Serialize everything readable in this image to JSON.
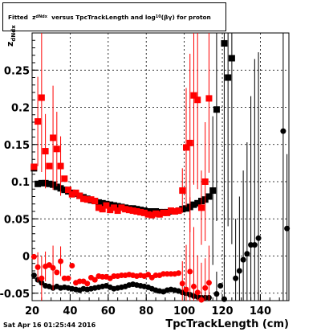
{
  "title_prefix": "Fitted",
  "title_z": "z",
  "title_z_sub": "dNdx",
  "title_mid": "versus TpcTrackLength and log",
  "title_log_sub": "10",
  "title_tail": "(βγ) for proton",
  "ylabel_main": "z",
  "ylabel_sub": "dNdx",
  "xlabel": "TpcTrackLength (cm)",
  "timestamp": "Sat Apr 16 01:25:44 2016",
  "colors": {
    "series_black": "#000000",
    "series_red": "#ff0000",
    "grid": "#000000"
  },
  "chart_data": {
    "type": "scatter",
    "xlim": [
      20,
      155
    ],
    "ylim": [
      -0.06,
      0.3
    ],
    "grid": true,
    "xticks": [
      20,
      40,
      60,
      80,
      100,
      120,
      140
    ],
    "xtick_labels": [
      "20",
      "40",
      "60",
      "80",
      "100",
      "120",
      "140"
    ],
    "yticks": [
      -0.05,
      0,
      0.05,
      0.1,
      0.15,
      0.2,
      0.25
    ],
    "ytick_labels": [
      "-0.05",
      "0",
      "0.05",
      "0.1",
      "0.15",
      "0.2",
      "0.25"
    ],
    "series": [
      {
        "marker": "square",
        "color": "#000000",
        "points": [
          [
            21,
            0.118
          ],
          [
            23,
            0.097
          ],
          [
            25,
            0.098
          ],
          [
            27,
            0.098
          ],
          [
            29,
            0.097
          ],
          [
            31,
            0.096
          ],
          [
            33,
            0.093
          ],
          [
            35,
            0.091
          ],
          [
            37,
            0.089
          ],
          [
            39,
            0.087
          ],
          [
            41,
            0.085
          ],
          [
            43,
            0.084
          ],
          [
            45,
            0.081
          ],
          [
            47,
            0.079
          ],
          [
            49,
            0.077
          ],
          [
            51,
            0.075
          ],
          [
            53,
            0.074
          ],
          [
            55,
            0.072
          ],
          [
            57,
            0.071
          ],
          [
            59,
            0.07
          ],
          [
            61,
            0.069
          ],
          [
            63,
            0.068
          ],
          [
            65,
            0.067
          ],
          [
            67,
            0.066
          ],
          [
            69,
            0.065
          ],
          [
            71,
            0.064
          ],
          [
            73,
            0.064
          ],
          [
            75,
            0.063
          ],
          [
            77,
            0.062
          ],
          [
            79,
            0.061
          ],
          [
            81,
            0.06
          ],
          [
            83,
            0.06
          ],
          [
            85,
            0.06
          ],
          [
            87,
            0.059
          ],
          [
            89,
            0.059
          ],
          [
            91,
            0.059
          ],
          [
            93,
            0.06
          ],
          [
            95,
            0.06
          ],
          [
            97,
            0.061
          ],
          [
            99,
            0.063
          ],
          [
            101,
            0.064
          ],
          [
            103,
            0.066
          ],
          [
            105,
            0.069
          ],
          [
            107,
            0.071
          ],
          [
            109,
            0.074
          ],
          [
            111,
            0.076
          ],
          [
            113,
            0.08
          ],
          [
            115,
            0.088
          ],
          [
            117,
            0.197
          ],
          [
            121,
            0.286
          ],
          [
            123,
            0.24
          ],
          [
            125,
            0.266
          ]
        ],
        "errors": [
          [
            115,
            0.1
          ],
          [
            117,
            0.15
          ],
          [
            121,
            0.3
          ],
          [
            123,
            0.2
          ],
          [
            125,
            0.25
          ]
        ]
      },
      {
        "marker": "square",
        "color": "#ff0000",
        "points": [
          [
            21,
            0.12
          ],
          [
            23,
            0.181
          ],
          [
            25,
            0.213
          ],
          [
            27,
            0.141
          ],
          [
            29,
            0.121
          ],
          [
            31,
            0.159
          ],
          [
            33,
            0.144
          ],
          [
            35,
            0.121
          ],
          [
            37,
            0.104
          ],
          [
            39,
            0.089
          ],
          [
            41,
            0.083
          ],
          [
            43,
            0.085
          ],
          [
            45,
            0.081
          ],
          [
            47,
            0.077
          ],
          [
            49,
            0.076
          ],
          [
            51,
            0.076
          ],
          [
            53,
            0.074
          ],
          [
            55,
            0.065
          ],
          [
            57,
            0.063
          ],
          [
            59,
            0.068
          ],
          [
            61,
            0.062
          ],
          [
            63,
            0.065
          ],
          [
            65,
            0.061
          ],
          [
            67,
            0.065
          ],
          [
            69,
            0.063
          ],
          [
            71,
            0.062
          ],
          [
            73,
            0.061
          ],
          [
            75,
            0.06
          ],
          [
            77,
            0.059
          ],
          [
            79,
            0.058
          ],
          [
            81,
            0.056
          ],
          [
            83,
            0.055
          ],
          [
            85,
            0.057
          ],
          [
            87,
            0.056
          ],
          [
            89,
            0.058
          ],
          [
            91,
            0.058
          ],
          [
            93,
            0.061
          ],
          [
            95,
            0.06
          ],
          [
            97,
            0.061
          ],
          [
            99,
            0.088
          ],
          [
            101,
            0.146
          ],
          [
            103,
            0.152
          ],
          [
            105,
            0.216
          ],
          [
            107,
            0.21
          ],
          [
            109,
            0.065
          ],
          [
            111,
            0.1
          ],
          [
            113,
            0.212
          ]
        ],
        "errors": [
          [
            23,
            0.06
          ],
          [
            25,
            0.1
          ],
          [
            27,
            0.05
          ],
          [
            31,
            0.07
          ],
          [
            33,
            0.05
          ],
          [
            35,
            0.04
          ],
          [
            99,
            0.03
          ],
          [
            101,
            0.08
          ],
          [
            103,
            0.12
          ],
          [
            105,
            0.12
          ],
          [
            107,
            0.12
          ],
          [
            109,
            0.05
          ],
          [
            111,
            0.08
          ],
          [
            113,
            0.1
          ]
        ]
      },
      {
        "marker": "circle",
        "color": "#000000",
        "points": [
          [
            21,
            -0.026
          ],
          [
            23,
            -0.032
          ],
          [
            25,
            -0.036
          ],
          [
            27,
            -0.04
          ],
          [
            29,
            -0.041
          ],
          [
            31,
            -0.043
          ],
          [
            33,
            -0.041
          ],
          [
            35,
            -0.043
          ],
          [
            37,
            -0.042
          ],
          [
            39,
            -0.043
          ],
          [
            41,
            -0.044
          ],
          [
            43,
            -0.045
          ],
          [
            45,
            -0.046
          ],
          [
            47,
            -0.044
          ],
          [
            49,
            -0.045
          ],
          [
            51,
            -0.044
          ],
          [
            53,
            -0.043
          ],
          [
            55,
            -0.042
          ],
          [
            57,
            -0.041
          ],
          [
            59,
            -0.04
          ],
          [
            61,
            -0.042
          ],
          [
            63,
            -0.044
          ],
          [
            65,
            -0.043
          ],
          [
            67,
            -0.042
          ],
          [
            69,
            -0.041
          ],
          [
            71,
            -0.039
          ],
          [
            73,
            -0.038
          ],
          [
            75,
            -0.039
          ],
          [
            77,
            -0.04
          ],
          [
            79,
            -0.041
          ],
          [
            81,
            -0.042
          ],
          [
            83,
            -0.044
          ],
          [
            85,
            -0.046
          ],
          [
            87,
            -0.047
          ],
          [
            89,
            -0.048
          ],
          [
            91,
            -0.046
          ],
          [
            93,
            -0.045
          ],
          [
            95,
            -0.046
          ],
          [
            97,
            -0.047
          ],
          [
            99,
            -0.049
          ],
          [
            101,
            -0.05
          ],
          [
            103,
            -0.052
          ],
          [
            105,
            -0.054
          ],
          [
            107,
            -0.055
          ],
          [
            109,
            -0.056
          ],
          [
            111,
            -0.056
          ],
          [
            113,
            -0.056
          ],
          [
            117,
            -0.051
          ],
          [
            119,
            -0.04
          ],
          [
            121,
            -0.058
          ],
          [
            127,
            -0.03
          ],
          [
            129,
            -0.02
          ],
          [
            131,
            -0.005
          ],
          [
            133,
            0.003
          ],
          [
            135,
            0.015
          ],
          [
            137,
            0.015
          ],
          [
            139,
            0.024
          ],
          [
            152,
            0.168
          ],
          [
            154,
            0.037
          ]
        ],
        "errors": [
          [
            117,
            0.03
          ],
          [
            121,
            0.05
          ],
          [
            127,
            0.08
          ],
          [
            129,
            0.1
          ],
          [
            131,
            0.12
          ],
          [
            133,
            0.15
          ],
          [
            135,
            0.2
          ],
          [
            137,
            0.25
          ],
          [
            139,
            0.25
          ],
          [
            152,
            0.3
          ],
          [
            154,
            0.1
          ]
        ]
      },
      {
        "marker": "circle",
        "color": "#ff0000",
        "points": [
          [
            21,
            -0.001
          ],
          [
            23,
            -0.015
          ],
          [
            25,
            -0.03
          ],
          [
            27,
            -0.014
          ],
          [
            29,
            -0.012
          ],
          [
            31,
            -0.016
          ],
          [
            33,
            -0.022
          ],
          [
            35,
            -0.007
          ],
          [
            37,
            -0.03
          ],
          [
            39,
            -0.03
          ],
          [
            41,
            -0.013
          ],
          [
            43,
            -0.036
          ],
          [
            45,
            -0.034
          ],
          [
            47,
            -0.034
          ],
          [
            49,
            -0.037
          ],
          [
            51,
            -0.029
          ],
          [
            53,
            -0.032
          ],
          [
            55,
            -0.027
          ],
          [
            57,
            -0.028
          ],
          [
            59,
            -0.028
          ],
          [
            61,
            -0.03
          ],
          [
            63,
            -0.027
          ],
          [
            65,
            -0.027
          ],
          [
            67,
            -0.026
          ],
          [
            69,
            -0.026
          ],
          [
            71,
            -0.025
          ],
          [
            73,
            -0.026
          ],
          [
            75,
            -0.027
          ],
          [
            77,
            -0.026
          ],
          [
            79,
            -0.027
          ],
          [
            81,
            -0.025
          ],
          [
            83,
            -0.029
          ],
          [
            85,
            -0.026
          ],
          [
            87,
            -0.026
          ],
          [
            89,
            -0.024
          ],
          [
            91,
            -0.024
          ],
          [
            93,
            -0.024
          ],
          [
            95,
            -0.024
          ],
          [
            97,
            -0.023
          ],
          [
            99,
            -0.037
          ],
          [
            101,
            -0.045
          ],
          [
            103,
            -0.021
          ],
          [
            105,
            -0.041
          ],
          [
            107,
            -0.049
          ],
          [
            109,
            -0.059
          ],
          [
            111,
            -0.043
          ],
          [
            113,
            -0.036
          ]
        ],
        "errors": [
          [
            23,
            0.02
          ],
          [
            25,
            0.03
          ],
          [
            27,
            0.02
          ],
          [
            31,
            0.03
          ],
          [
            35,
            0.02
          ],
          [
            99,
            0.03
          ],
          [
            101,
            0.06
          ],
          [
            103,
            0.1
          ],
          [
            105,
            0.08
          ],
          [
            107,
            0.05
          ],
          [
            109,
            0.05
          ],
          [
            111,
            0.04
          ],
          [
            113,
            0.05
          ]
        ]
      }
    ]
  }
}
